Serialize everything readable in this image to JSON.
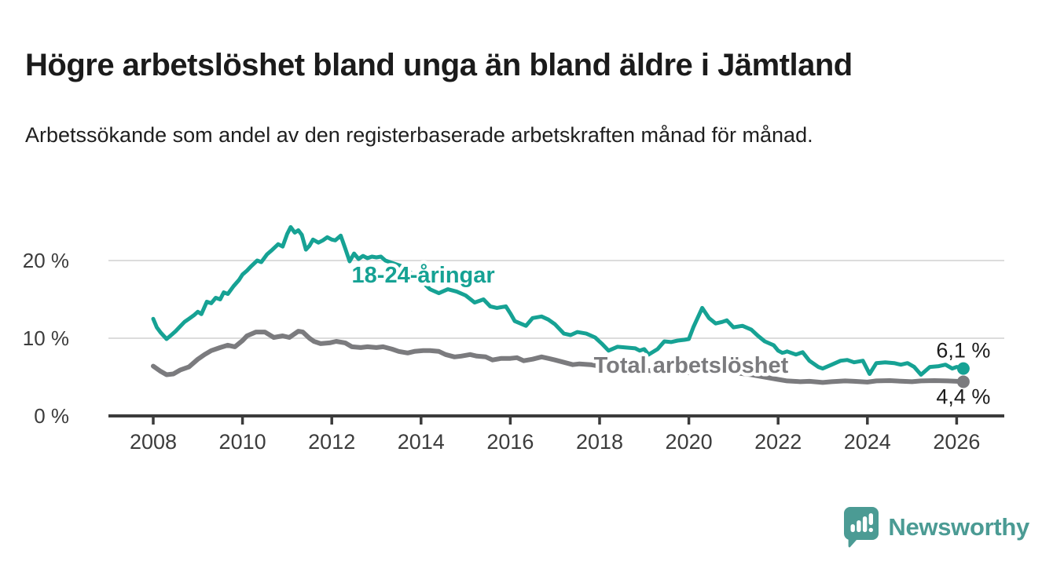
{
  "header": {
    "title": "Högre arbetslöshet bland unga än bland äldre i Jämtland",
    "subtitle": "Arbetssökande som andel av den registerbaserade arbetskraften månad för månad."
  },
  "footer": {
    "brand": "Newsworthy",
    "brand_color": "#4b9b94"
  },
  "colors": {
    "title_text": "#1b1b1b",
    "axis_line": "#3b3b3b",
    "tick_text": "#3c3c3c",
    "gridline": "#dcdcdc",
    "value_label_text": "#1b1b1b",
    "background": "#ffffff"
  },
  "chart_data": {
    "type": "line",
    "title": "Högre arbetslöshet bland unga än bland äldre i Jämtland",
    "subtitle": "Arbetssökande som andel av den registerbaserade arbetskraften månad för månad.",
    "xlabel": "",
    "ylabel": "",
    "xlim": [
      2007.05,
      2027.05
    ],
    "ylim": [
      0,
      26
    ],
    "grid": "horizontal",
    "legend_position": "inline-labels",
    "x_ticks": [
      {
        "value": 2008,
        "label": "2008"
      },
      {
        "value": 2010,
        "label": "2010"
      },
      {
        "value": 2012,
        "label": "2012"
      },
      {
        "value": 2014,
        "label": "2014"
      },
      {
        "value": 2016,
        "label": "2016"
      },
      {
        "value": 2018,
        "label": "2018"
      },
      {
        "value": 2020,
        "label": "2020"
      },
      {
        "value": 2022,
        "label": "2022"
      },
      {
        "value": 2024,
        "label": "2024"
      },
      {
        "value": 2026,
        "label": "2026"
      }
    ],
    "y_ticks": [
      {
        "value": 0,
        "label": "0 %"
      },
      {
        "value": 10,
        "label": "10 %"
      },
      {
        "value": 20,
        "label": "20 %"
      }
    ],
    "series": [
      {
        "name": "18-24-åringar",
        "color": "#16a294",
        "line_width": 5,
        "end_label": "6,1 %",
        "end_value": 6.1,
        "label_text": "18-24-åringar",
        "label_at": {
          "x": 2014.05,
          "y": 18.2
        },
        "end_label_side": "above",
        "points": [
          [
            2008.0,
            12.5
          ],
          [
            2008.08,
            11.4
          ],
          [
            2008.17,
            10.7
          ],
          [
            2008.3,
            9.9
          ],
          [
            2008.42,
            10.5
          ],
          [
            2008.5,
            10.9
          ],
          [
            2008.6,
            11.5
          ],
          [
            2008.7,
            12.1
          ],
          [
            2008.8,
            12.5
          ],
          [
            2008.92,
            13.0
          ],
          [
            2009.0,
            13.4
          ],
          [
            2009.08,
            13.1
          ],
          [
            2009.2,
            14.7
          ],
          [
            2009.3,
            14.5
          ],
          [
            2009.4,
            15.2
          ],
          [
            2009.5,
            15.0
          ],
          [
            2009.58,
            15.9
          ],
          [
            2009.67,
            15.7
          ],
          [
            2009.8,
            16.7
          ],
          [
            2009.92,
            17.5
          ],
          [
            2010.0,
            18.2
          ],
          [
            2010.1,
            18.7
          ],
          [
            2010.2,
            19.3
          ],
          [
            2010.33,
            20.0
          ],
          [
            2010.42,
            19.8
          ],
          [
            2010.55,
            20.8
          ],
          [
            2010.67,
            21.4
          ],
          [
            2010.8,
            22.1
          ],
          [
            2010.9,
            21.8
          ],
          [
            2011.0,
            23.4
          ],
          [
            2011.08,
            24.3
          ],
          [
            2011.17,
            23.6
          ],
          [
            2011.25,
            23.9
          ],
          [
            2011.33,
            23.3
          ],
          [
            2011.42,
            21.4
          ],
          [
            2011.5,
            21.9
          ],
          [
            2011.58,
            22.7
          ],
          [
            2011.7,
            22.3
          ],
          [
            2011.8,
            22.6
          ],
          [
            2011.9,
            23.0
          ],
          [
            2012.0,
            22.7
          ],
          [
            2012.08,
            22.6
          ],
          [
            2012.2,
            23.2
          ],
          [
            2012.3,
            21.6
          ],
          [
            2012.4,
            19.9
          ],
          [
            2012.5,
            20.9
          ],
          [
            2012.6,
            20.2
          ],
          [
            2012.7,
            20.6
          ],
          [
            2012.8,
            20.3
          ],
          [
            2012.9,
            20.5
          ],
          [
            2013.0,
            20.4
          ],
          [
            2013.1,
            20.5
          ],
          [
            2013.2,
            20.0
          ],
          [
            2013.4,
            19.6
          ],
          [
            2013.6,
            19.2
          ],
          [
            2013.8,
            18.3
          ],
          [
            2014.0,
            17.4
          ],
          [
            2014.2,
            16.3
          ],
          [
            2014.4,
            15.8
          ],
          [
            2014.6,
            16.3
          ],
          [
            2014.8,
            16.0
          ],
          [
            2015.0,
            15.5
          ],
          [
            2015.2,
            14.6
          ],
          [
            2015.4,
            15.0
          ],
          [
            2015.55,
            14.1
          ],
          [
            2015.7,
            13.9
          ],
          [
            2015.9,
            14.1
          ],
          [
            2016.0,
            13.2
          ],
          [
            2016.1,
            12.2
          ],
          [
            2016.35,
            11.6
          ],
          [
            2016.5,
            12.6
          ],
          [
            2016.7,
            12.8
          ],
          [
            2016.85,
            12.4
          ],
          [
            2017.0,
            11.8
          ],
          [
            2017.2,
            10.6
          ],
          [
            2017.35,
            10.4
          ],
          [
            2017.5,
            10.8
          ],
          [
            2017.7,
            10.6
          ],
          [
            2017.9,
            10.1
          ],
          [
            2018.05,
            9.3
          ],
          [
            2018.2,
            8.4
          ],
          [
            2018.4,
            8.9
          ],
          [
            2018.6,
            8.8
          ],
          [
            2018.8,
            8.7
          ],
          [
            2018.9,
            8.4
          ],
          [
            2019.0,
            8.6
          ],
          [
            2019.1,
            7.9
          ],
          [
            2019.3,
            8.6
          ],
          [
            2019.45,
            9.6
          ],
          [
            2019.6,
            9.5
          ],
          [
            2019.75,
            9.7
          ],
          [
            2019.9,
            9.8
          ],
          [
            2020.0,
            9.9
          ],
          [
            2020.1,
            11.4
          ],
          [
            2020.3,
            13.9
          ],
          [
            2020.45,
            12.6
          ],
          [
            2020.6,
            11.9
          ],
          [
            2020.75,
            12.1
          ],
          [
            2020.85,
            12.3
          ],
          [
            2021.0,
            11.4
          ],
          [
            2021.2,
            11.6
          ],
          [
            2021.4,
            11.1
          ],
          [
            2021.55,
            10.3
          ],
          [
            2021.7,
            9.6
          ],
          [
            2021.9,
            9.1
          ],
          [
            2022.0,
            8.4
          ],
          [
            2022.1,
            8.1
          ],
          [
            2022.2,
            8.3
          ],
          [
            2022.4,
            7.9
          ],
          [
            2022.55,
            8.2
          ],
          [
            2022.7,
            7.1
          ],
          [
            2022.9,
            6.3
          ],
          [
            2023.0,
            6.1
          ],
          [
            2023.2,
            6.6
          ],
          [
            2023.4,
            7.1
          ],
          [
            2023.55,
            7.2
          ],
          [
            2023.7,
            6.9
          ],
          [
            2023.9,
            7.1
          ],
          [
            2024.05,
            5.4
          ],
          [
            2024.2,
            6.8
          ],
          [
            2024.4,
            6.9
          ],
          [
            2024.6,
            6.8
          ],
          [
            2024.75,
            6.6
          ],
          [
            2024.9,
            6.8
          ],
          [
            2025.05,
            6.3
          ],
          [
            2025.2,
            5.3
          ],
          [
            2025.4,
            6.3
          ],
          [
            2025.6,
            6.4
          ],
          [
            2025.75,
            6.6
          ],
          [
            2025.9,
            6.1
          ],
          [
            2026.0,
            6.3
          ],
          [
            2026.15,
            6.1
          ]
        ]
      },
      {
        "name": "Total arbetslöshet",
        "color": "#7b7b7e",
        "line_width": 6,
        "end_label": "4,4 %",
        "end_value": 4.4,
        "label_text": "Total arbetslöshet",
        "label_at": {
          "x": 2020.05,
          "y": 6.55
        },
        "end_label_side": "below",
        "points": [
          [
            2008.0,
            6.4
          ],
          [
            2008.15,
            5.8
          ],
          [
            2008.3,
            5.3
          ],
          [
            2008.45,
            5.4
          ],
          [
            2008.6,
            5.9
          ],
          [
            2008.8,
            6.3
          ],
          [
            2009.0,
            7.3
          ],
          [
            2009.15,
            7.9
          ],
          [
            2009.3,
            8.4
          ],
          [
            2009.5,
            8.8
          ],
          [
            2009.67,
            9.1
          ],
          [
            2009.83,
            8.9
          ],
          [
            2010.0,
            9.7
          ],
          [
            2010.1,
            10.3
          ],
          [
            2010.3,
            10.8
          ],
          [
            2010.5,
            10.8
          ],
          [
            2010.7,
            10.1
          ],
          [
            2010.9,
            10.3
          ],
          [
            2011.05,
            10.1
          ],
          [
            2011.25,
            10.9
          ],
          [
            2011.35,
            10.8
          ],
          [
            2011.5,
            10.0
          ],
          [
            2011.6,
            9.6
          ],
          [
            2011.75,
            9.3
          ],
          [
            2011.95,
            9.4
          ],
          [
            2012.1,
            9.6
          ],
          [
            2012.3,
            9.4
          ],
          [
            2012.45,
            8.9
          ],
          [
            2012.65,
            8.8
          ],
          [
            2012.8,
            8.9
          ],
          [
            2013.0,
            8.8
          ],
          [
            2013.15,
            8.9
          ],
          [
            2013.35,
            8.6
          ],
          [
            2013.5,
            8.3
          ],
          [
            2013.7,
            8.1
          ],
          [
            2013.85,
            8.3
          ],
          [
            2014.05,
            8.4
          ],
          [
            2014.2,
            8.4
          ],
          [
            2014.4,
            8.3
          ],
          [
            2014.55,
            7.9
          ],
          [
            2014.75,
            7.6
          ],
          [
            2014.9,
            7.7
          ],
          [
            2015.1,
            7.9
          ],
          [
            2015.25,
            7.7
          ],
          [
            2015.45,
            7.6
          ],
          [
            2015.6,
            7.2
          ],
          [
            2015.8,
            7.4
          ],
          [
            2016.0,
            7.4
          ],
          [
            2016.15,
            7.5
          ],
          [
            2016.3,
            7.1
          ],
          [
            2016.5,
            7.3
          ],
          [
            2016.7,
            7.6
          ],
          [
            2016.85,
            7.4
          ],
          [
            2017.0,
            7.2
          ],
          [
            2017.2,
            6.9
          ],
          [
            2017.4,
            6.6
          ],
          [
            2017.55,
            6.7
          ],
          [
            2017.8,
            6.6
          ],
          [
            2018.0,
            6.4
          ],
          [
            2018.3,
            6.2
          ],
          [
            2018.6,
            6.1
          ],
          [
            2019.0,
            5.9
          ],
          [
            2019.4,
            5.7
          ],
          [
            2019.8,
            5.6
          ],
          [
            2020.0,
            5.6
          ],
          [
            2020.3,
            6.0
          ],
          [
            2020.6,
            5.9
          ],
          [
            2021.0,
            5.6
          ],
          [
            2021.4,
            5.3
          ],
          [
            2021.7,
            5.0
          ],
          [
            2022.0,
            4.7
          ],
          [
            2022.2,
            4.5
          ],
          [
            2022.5,
            4.4
          ],
          [
            2022.7,
            4.45
          ],
          [
            2023.0,
            4.3
          ],
          [
            2023.2,
            4.4
          ],
          [
            2023.5,
            4.5
          ],
          [
            2023.7,
            4.45
          ],
          [
            2024.0,
            4.35
          ],
          [
            2024.2,
            4.5
          ],
          [
            2024.5,
            4.55
          ],
          [
            2024.8,
            4.45
          ],
          [
            2025.0,
            4.4
          ],
          [
            2025.2,
            4.5
          ],
          [
            2025.5,
            4.55
          ],
          [
            2025.8,
            4.5
          ],
          [
            2026.0,
            4.45
          ],
          [
            2026.15,
            4.4
          ]
        ]
      }
    ]
  }
}
